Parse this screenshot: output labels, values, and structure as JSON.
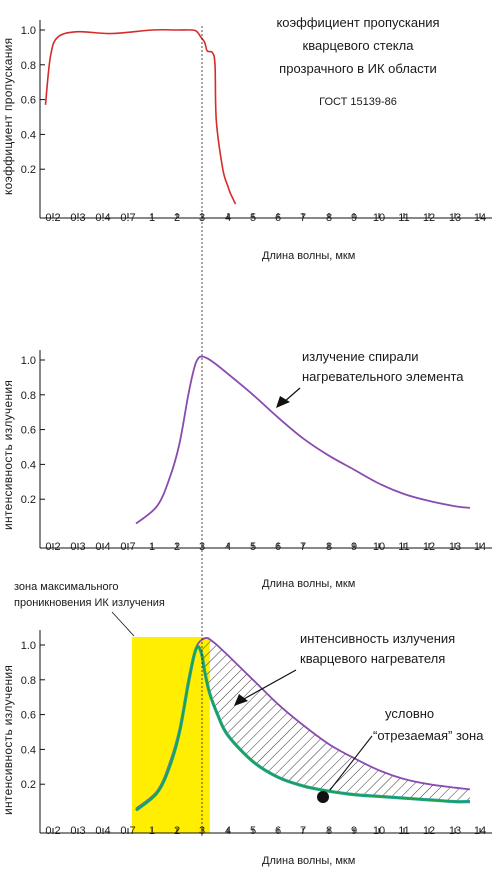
{
  "chart_data": [
    {
      "type": "line",
      "ylabel": "коэффициент пропускания",
      "xlabel": "Длина волны, мкм",
      "x_ticks": [
        "0.2",
        "0.3",
        "0.4",
        "0.7",
        "1",
        "2",
        "3",
        "4",
        "5",
        "6",
        "7",
        "8",
        "9",
        "10",
        "11",
        "12",
        "13",
        "14"
      ],
      "y_ticks": [
        "1.0",
        "0.8",
        "0.6",
        "0.4",
        "0.2"
      ],
      "ylim": [
        0,
        1.05
      ],
      "annotations": [
        "коэффициент пропускания",
        "кварцевого стекла",
        "прозрачного в ИК области",
        "ГОСТ 15139-86"
      ],
      "series": [
        {
          "color": "#d62b2b",
          "x": [
            0.17,
            0.19,
            0.22,
            0.3,
            0.5,
            1,
            2,
            2.6,
            2.8,
            2.95,
            3.1,
            3.2,
            3.4,
            3.5,
            3.55,
            3.8,
            4.0,
            4.1,
            4.3
          ],
          "y": [
            0.57,
            0.85,
            0.96,
            0.99,
            0.98,
            1.0,
            1.0,
            1.0,
            0.99,
            0.96,
            0.93,
            0.88,
            0.87,
            0.8,
            0.48,
            0.2,
            0.1,
            0.06,
            0.0
          ]
        }
      ]
    },
    {
      "type": "line",
      "ylabel": "интенсивность излучения",
      "xlabel": "Длина волны, мкм",
      "x_ticks": [
        "0.2",
        "0.3",
        "0.4",
        "0.7",
        "1",
        "2",
        "3",
        "4",
        "5",
        "6",
        "7",
        "8",
        "9",
        "10",
        "11",
        "12",
        "13",
        "14"
      ],
      "y_ticks": [
        "1.0",
        "0.8",
        "0.6",
        "0.4",
        "0.2"
      ],
      "ylim": [
        0,
        1.05
      ],
      "annotations": [
        "излучение спирали",
        "нагревательного элемента"
      ],
      "series": [
        {
          "color": "#8a4bb0",
          "x": [
            0.8,
            1.2,
            1.7,
            2.1,
            2.45,
            2.7,
            2.85,
            3.0,
            3.2,
            3.5,
            4.0,
            5.0,
            6.0,
            7.0,
            8.0,
            9.0,
            10.0,
            11.0,
            12.0,
            13.0,
            13.6
          ],
          "y": [
            0.06,
            0.16,
            0.32,
            0.52,
            0.8,
            0.96,
            1.01,
            1.02,
            1.01,
            0.98,
            0.92,
            0.8,
            0.67,
            0.55,
            0.45,
            0.37,
            0.29,
            0.23,
            0.19,
            0.16,
            0.15
          ]
        }
      ]
    },
    {
      "type": "line",
      "ylabel": "интенсивность излучения",
      "xlabel": "Длина волны, мкм",
      "x_ticks": [
        "0.2",
        "0.3",
        "0.4",
        "0.7",
        "1",
        "2",
        "3",
        "4",
        "5",
        "6",
        "7",
        "8",
        "9",
        "10",
        "11",
        "12",
        "13",
        "14"
      ],
      "y_ticks": [
        "1.0",
        "0.8",
        "0.6",
        "0.4",
        "0.2"
      ],
      "ylim": [
        0,
        1.05
      ],
      "annotations": [
        "зона максимального",
        "проникновения ИК излучения",
        "интенсивность излучения",
        "кварцевого нагревателя",
        "условно",
        "“отрезаемая” зона"
      ],
      "highlight_band": {
        "x_from": 0.7,
        "x_to": 3.3,
        "color": "#ffee00"
      },
      "series": [
        {
          "color": "#8a4bb0",
          "x": [
            0.8,
            1.2,
            1.7,
            2.1,
            2.45,
            2.7,
            2.85,
            3.0,
            3.2,
            3.5,
            4.0,
            5.0,
            6.0,
            7.0,
            8.0,
            9.0,
            10.0,
            11.0,
            12.0,
            13.0,
            13.6
          ],
          "y": [
            0.06,
            0.16,
            0.32,
            0.52,
            0.8,
            0.96,
            1.01,
            1.03,
            1.04,
            1.01,
            0.94,
            0.8,
            0.66,
            0.54,
            0.43,
            0.35,
            0.28,
            0.23,
            0.2,
            0.18,
            0.17
          ]
        },
        {
          "color": "#1aa34a",
          "x": [
            0.8,
            1.2,
            1.7,
            2.1,
            2.45,
            2.7,
            2.85,
            3.0,
            3.1,
            3.3,
            3.6,
            4.0,
            5.0,
            6.0,
            7.0,
            8.0,
            9.0,
            10.0,
            11.0,
            12.0,
            13.0,
            13.6
          ],
          "y": [
            0.05,
            0.15,
            0.3,
            0.5,
            0.78,
            0.95,
            0.99,
            0.94,
            0.85,
            0.72,
            0.6,
            0.48,
            0.33,
            0.24,
            0.19,
            0.16,
            0.14,
            0.13,
            0.12,
            0.11,
            0.1,
            0.1
          ]
        }
      ]
    }
  ]
}
